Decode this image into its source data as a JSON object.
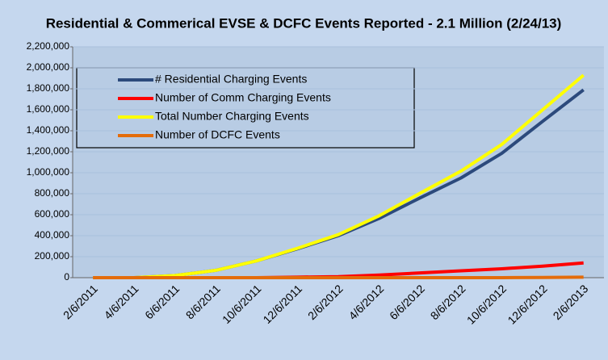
{
  "chart_data": {
    "type": "line",
    "title": "Residential & Commerical EVSE & DCFC Events Reported - 2.1 Million (2/24/13)",
    "categories": [
      "2/6/2011",
      "4/6/2011",
      "6/6/2011",
      "8/6/2011",
      "10/6/2011",
      "12/6/2011",
      "2/6/2012",
      "4/6/2012",
      "6/6/2012",
      "8/6/2012",
      "10/6/2012",
      "12/6/2012",
      "2/6/2013"
    ],
    "series": [
      {
        "name": "# Residential Charging Events",
        "color": "#2c4a7c",
        "values": [
          0,
          0,
          20000,
          70000,
          160000,
          275000,
          400000,
          565000,
          760000,
          950000,
          1185000,
          1490000,
          1790000
        ]
      },
      {
        "name": "Number of Comm Charging Events",
        "color": "#ff0000",
        "values": [
          0,
          0,
          0,
          0,
          0,
          5000,
          10000,
          25000,
          45000,
          65000,
          85000,
          110000,
          140000
        ]
      },
      {
        "name": "Total Number Charging Events",
        "color": "#ffff00",
        "values": [
          0,
          0,
          20000,
          70000,
          160000,
          280000,
          410000,
          590000,
          805000,
          1015000,
          1270000,
          1600000,
          1930000
        ]
      },
      {
        "name": "Number of DCFC Events",
        "color": "#e46c0a",
        "values": [
          0,
          0,
          0,
          0,
          0,
          0,
          0,
          0,
          0,
          0,
          0,
          2000,
          5000
        ]
      }
    ],
    "ylim": [
      0,
      2200000
    ],
    "yticks": [
      0,
      {
        "value": 200000,
        "label": "200,000"
      },
      {
        "value": 400000,
        "label": "400,000"
      },
      {
        "value": 600000,
        "label": "600,000"
      },
      {
        "value": 800000,
        "label": "800,000"
      },
      {
        "value": 1000000,
        "label": "1,000,000"
      },
      {
        "value": 1200000,
        "label": "1,200,000"
      },
      {
        "value": 1400000,
        "label": "1,400,000"
      },
      {
        "value": 1600000,
        "label": "1,600,000"
      },
      {
        "value": 1800000,
        "label": "1,800,000"
      },
      {
        "value": 2000000,
        "label": "2,000,000"
      },
      {
        "value": 2200000,
        "label": "2,200,000"
      }
    ],
    "grid": true
  }
}
